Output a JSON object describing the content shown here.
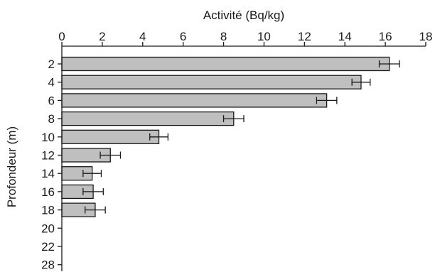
{
  "chart_data": {
    "type": "bar",
    "orientation": "horizontal",
    "xlabel": "Activité (Bq/kg)",
    "ylabel": "Profondeur (m)",
    "xlim": [
      0,
      18
    ],
    "x_ticks": [
      "0",
      "2",
      "4",
      "6",
      "8",
      "10",
      "12",
      "14",
      "16",
      "18"
    ],
    "x_axis_position": "top",
    "categories": [
      "2",
      "4",
      "6",
      "8",
      "10",
      "12",
      "14",
      "16",
      "18",
      "20",
      "22",
      "28"
    ],
    "values": [
      16.2,
      14.8,
      13.1,
      8.5,
      4.8,
      2.4,
      1.5,
      1.55,
      1.65,
      null,
      null,
      null
    ],
    "errors": [
      0.5,
      0.45,
      0.5,
      0.5,
      0.45,
      0.5,
      0.45,
      0.5,
      0.5,
      null,
      null,
      null
    ],
    "bar_color": "#bfbfbf",
    "grid": false
  }
}
